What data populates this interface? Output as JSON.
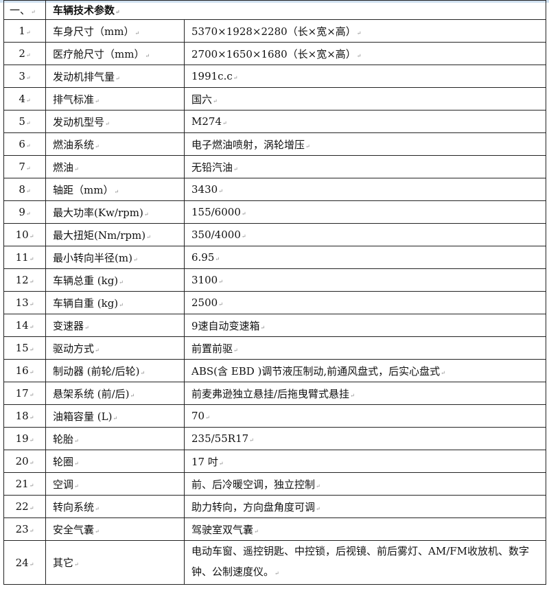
{
  "section": {
    "number": "一、",
    "title": "车辆技术参数"
  },
  "rows": [
    {
      "no": "1",
      "item": "车身尺寸（mm）",
      "value": "5370×1928×2280（长×宽×高）"
    },
    {
      "no": "2",
      "item": "医疗舱尺寸（mm）",
      "value": "2700×1650×1680（长×宽×高）"
    },
    {
      "no": "3",
      "item": "发动机排气量",
      "value": "1991c.c"
    },
    {
      "no": "4",
      "item": "排气标准",
      "value": "国六"
    },
    {
      "no": "5",
      "item": "发动机型号",
      "value": "M274"
    },
    {
      "no": "6",
      "item": "燃油系统",
      "value": "电子燃油喷射，涡轮增压"
    },
    {
      "no": "7",
      "item": "燃油",
      "value": "无铅汽油"
    },
    {
      "no": "8",
      "item": "轴距（mm）",
      "value": "3430"
    },
    {
      "no": "9",
      "item": "最大功率(Kw/rpm)",
      "value": "155/6000"
    },
    {
      "no": "10",
      "item": "最大扭矩(Nm/rpm)",
      "value": "350/4000"
    },
    {
      "no": "11",
      "item": "最小转向半径(m)",
      "value": "6.95"
    },
    {
      "no": "12",
      "item": "车辆总重 (kg)",
      "value": "3100"
    },
    {
      "no": "13",
      "item": "车辆自重 (kg)",
      "value": "2500"
    },
    {
      "no": "14",
      "item": "变速器",
      "value": "9速自动变速箱"
    },
    {
      "no": "15",
      "item": "驱动方式",
      "value": "前置前驱"
    },
    {
      "no": "16",
      "item": "制动器 (前轮/后轮)",
      "value": "ABS(含 EBD )调节液压制动,前通风盘式，后实心盘式"
    },
    {
      "no": "17",
      "item": "悬架系统 (前/后)",
      "value": "前麦弗逊独立悬挂/后拖曳臂式悬挂"
    },
    {
      "no": "18",
      "item": "油箱容量 (L)",
      "value": "70"
    },
    {
      "no": "19",
      "item": "轮胎",
      "value": "235/55R17"
    },
    {
      "no": "20",
      "item": "轮圈",
      "value": "17 吋"
    },
    {
      "no": "21",
      "item": "空调",
      "value": "前、后冷暖空调，独立控制"
    },
    {
      "no": "22",
      "item": "转向系统",
      "value": "助力转向，方向盘角度可调"
    },
    {
      "no": "23",
      "item": "安全气囊",
      "value": "驾驶室双气囊"
    },
    {
      "no": "24",
      "item": "其它",
      "value": "电动车窗、遥控钥匙、中控锁，后视镜、前后雾灯、AM/FM收放机、数字钟、公制速度仪。"
    }
  ]
}
